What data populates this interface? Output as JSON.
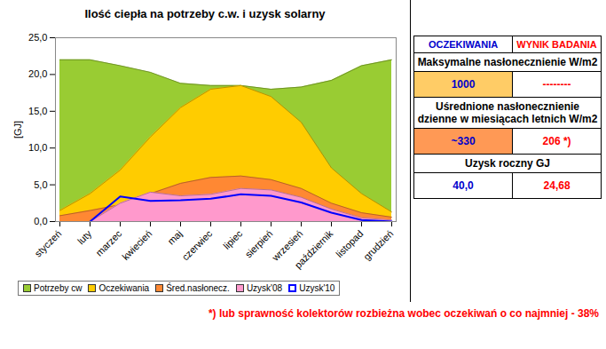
{
  "chart_data": {
    "type": "area",
    "title": "Ilość ciepła na potrzeby c.w. i uzysk solarny",
    "y_label": "[GJ]",
    "categories": [
      "styczeń",
      "luty",
      "marzec",
      "kwiecień",
      "maj",
      "czerwiec",
      "lipiec",
      "sierpień",
      "wrzesień",
      "październik",
      "listopad",
      "grudzień"
    ],
    "series": [
      {
        "name": "Potrzeby cw",
        "type": "area",
        "color": "#99cc33",
        "values": [
          22.0,
          22.0,
          21.2,
          20.3,
          18.8,
          18.5,
          18.5,
          18.0,
          18.3,
          19.2,
          21.2,
          22.0
        ]
      },
      {
        "name": "Oczekiwania",
        "type": "area",
        "color": "#ffcc00",
        "values": [
          1.5,
          3.8,
          7.0,
          11.5,
          15.5,
          18.0,
          18.5,
          17.0,
          13.5,
          7.3,
          3.8,
          1.3
        ]
      },
      {
        "name": "Śred.nasłonecz.",
        "type": "area",
        "color": "#ff8833",
        "values": [
          0.8,
          1.5,
          2.3,
          3.8,
          5.2,
          6.0,
          6.2,
          5.7,
          4.5,
          2.5,
          1.2,
          0.6
        ]
      },
      {
        "name": "Uzysk'08",
        "type": "area",
        "color": "#ff99cc",
        "values": [
          0.0,
          0.0,
          2.5,
          4.0,
          3.5,
          3.7,
          4.5,
          4.3,
          3.3,
          1.7,
          0.5,
          0.2
        ]
      },
      {
        "name": "Uzysk'10",
        "type": "line",
        "color": "#0000ff",
        "values": [
          null,
          0.0,
          3.4,
          2.8,
          2.9,
          3.1,
          3.7,
          3.5,
          2.6,
          1.2,
          0.2,
          0.0
        ]
      }
    ],
    "ylim": [
      0,
      25
    ],
    "yticks": [
      {
        "value": 0,
        "label": "0,0"
      },
      {
        "value": 5,
        "label": "5,0"
      },
      {
        "value": 10,
        "label": "10,0"
      },
      {
        "value": 15,
        "label": "15,0"
      },
      {
        "value": 20,
        "label": "20,0"
      },
      {
        "value": 25,
        "label": "25,0"
      }
    ],
    "grid": false,
    "legend": "bottom"
  },
  "table": {
    "header": [
      "OCZEKIWANIA",
      "WYNIK BADANIA"
    ],
    "rows": [
      {
        "label": "Maksymalne nasłonecznienie W/m2",
        "values": [
          "1000",
          "--------"
        ]
      },
      {
        "label": "Uśrednione nasłonecznienie dzienne w miesiącach letnich W/m2",
        "values": [
          "~330",
          "206 *)"
        ]
      },
      {
        "label": "Uzysk roczny GJ",
        "values": [
          "40,0",
          "24,68"
        ]
      }
    ]
  },
  "footnote": "*) lub sprawność kolektorów rozbieżna wobec oczekiwań o co najmniej - 38%"
}
